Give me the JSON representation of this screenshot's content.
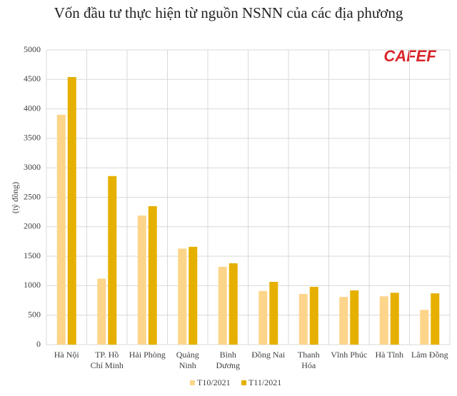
{
  "chart_data": {
    "type": "bar",
    "title": "Vốn đầu tư thực hiện từ nguồn NSNN của các địa phương",
    "y_label": "(tỷ đồng)",
    "watermark": "CAFEF",
    "categories": [
      [
        "Hà Nội"
      ],
      [
        "TP. Hồ",
        "Chí Minh"
      ],
      [
        "Hải Phòng"
      ],
      [
        "Quảng",
        "Ninh"
      ],
      [
        "Bình",
        "Dương"
      ],
      [
        "Đồng Nai"
      ],
      [
        "Thanh",
        "Hóa"
      ],
      [
        "Vĩnh Phúc"
      ],
      [
        "Hà Tĩnh"
      ],
      [
        "Lâm Đồng"
      ]
    ],
    "series": [
      {
        "name": "T10/2021",
        "color": "#fdd58a",
        "values": [
          3900,
          1120,
          2190,
          1630,
          1320,
          910,
          860,
          810,
          820,
          590
        ]
      },
      {
        "name": "T11/2021",
        "color": "#e6b000",
        "values": [
          4540,
          2860,
          2350,
          1660,
          1380,
          1065,
          980,
          920,
          880,
          870
        ]
      }
    ],
    "ylim": [
      0,
      5000
    ],
    "yticks": [
      0,
      500,
      1000,
      1500,
      2000,
      2500,
      3000,
      3500,
      4000,
      4500,
      5000
    ],
    "grid": true,
    "legend": "bottom"
  }
}
